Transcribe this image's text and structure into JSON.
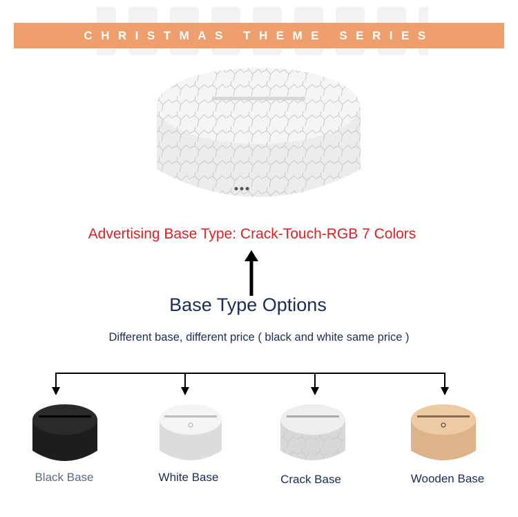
{
  "banner": {
    "watermark": "CHRISTMAS",
    "title": "CHRISTMAS THEME SERIES",
    "color": "#ef9f6e"
  },
  "advert": {
    "text": "Advertising Base Type: Crack-Touch-RGB 7 Colors",
    "color": "#e41e20"
  },
  "options": {
    "title": "Base Type Options",
    "subtitle": "Different base, different price ( black and white same price )"
  },
  "bases": [
    {
      "label": "Black Base",
      "color": "#1d1d1d"
    },
    {
      "label": "White Base",
      "color": "#e6e6e6"
    },
    {
      "label": "Crack Base",
      "color": "#dcdcdc"
    },
    {
      "label": "Wooden Base",
      "color": "#e7bf95"
    }
  ]
}
